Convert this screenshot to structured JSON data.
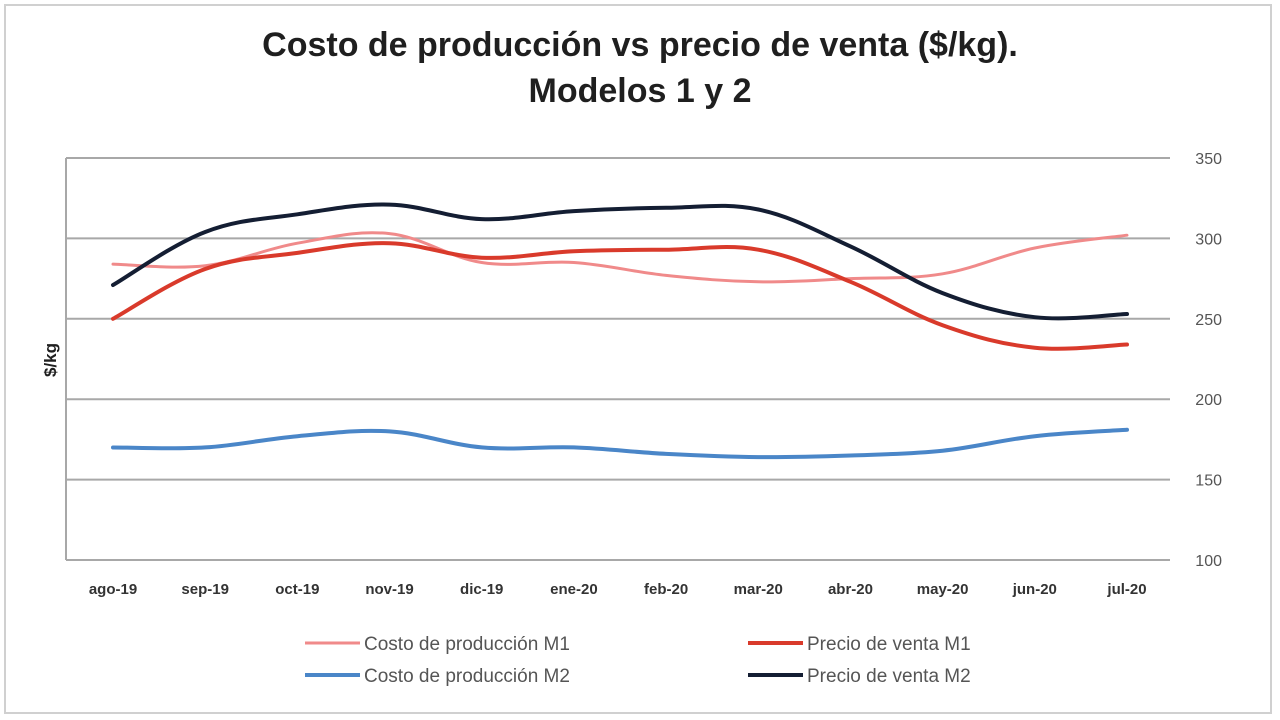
{
  "chart_data": {
    "type": "line",
    "title_line1": "Costo de producción vs precio de venta ($/kg).",
    "title_line2": "Modelos 1 y 2",
    "ylabel": "$/kg",
    "ylim": [
      100,
      350
    ],
    "yticks": [
      100,
      150,
      200,
      250,
      300,
      350
    ],
    "grid": true,
    "y_axis_side": "right",
    "legend_position": "bottom",
    "categories": [
      "ago-19",
      "sep-19",
      "oct-19",
      "nov-19",
      "dic-19",
      "ene-20",
      "feb-20",
      "mar-20",
      "abr-20",
      "may-20",
      "jun-20",
      "jul-20"
    ],
    "series": [
      {
        "name": "Costo de producción M1",
        "color": "#f08a8a",
        "values": [
          284,
          283,
          297,
          303,
          285,
          285,
          277,
          273,
          275,
          278,
          294,
          302
        ]
      },
      {
        "name": "Precio de venta M1",
        "color": "#d93a2b",
        "values": [
          250,
          281,
          291,
          297,
          288,
          292,
          293,
          293,
          273,
          246,
          232,
          234
        ]
      },
      {
        "name": "Costo de producción M2",
        "color": "#4a86c8",
        "values": [
          170,
          170,
          177,
          180,
          170,
          170,
          166,
          164,
          165,
          168,
          177,
          181
        ]
      },
      {
        "name": "Precio de venta M2",
        "color": "#141e33",
        "values": [
          271,
          304,
          315,
          321,
          312,
          317,
          319,
          318,
          295,
          266,
          251,
          253
        ]
      }
    ]
  }
}
